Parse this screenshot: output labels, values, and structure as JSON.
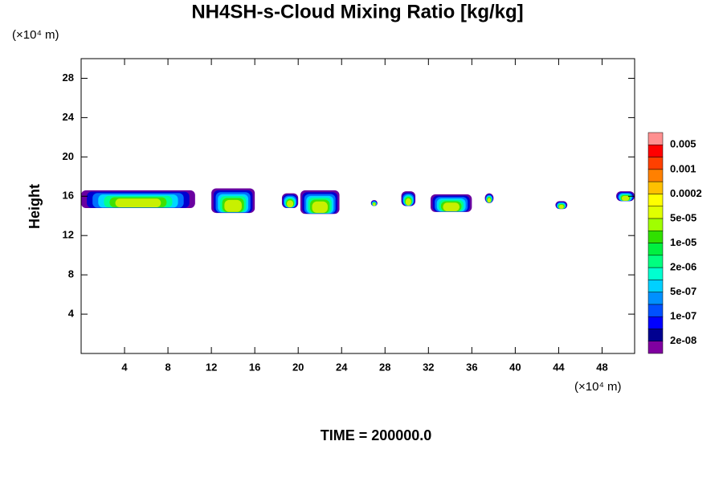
{
  "chart_data": {
    "type": "contour",
    "title": "NH4SH-s-Cloud Mixing Ratio [kg/kg]",
    "y_unit": "(×10⁴ m)",
    "x_unit": "(×10⁴ m)",
    "ylabel": "Height",
    "footer": "TIME = 200000.0",
    "xlim": [
      0,
      51
    ],
    "ylim": [
      0,
      30
    ],
    "xticks": [
      4,
      8,
      12,
      16,
      20,
      24,
      28,
      32,
      36,
      40,
      44,
      48
    ],
    "yticks": [
      4,
      8,
      12,
      16,
      20,
      24,
      28
    ],
    "clouds": [
      {
        "x": [
          0,
          10.5
        ],
        "y": [
          14.8,
          16.6
        ]
      },
      {
        "x": [
          12,
          16
        ],
        "y": [
          14.3,
          16.8
        ]
      },
      {
        "x": [
          18.5,
          20
        ],
        "y": [
          14.8,
          16.3
        ]
      },
      {
        "x": [
          20.2,
          23.8
        ],
        "y": [
          14.2,
          16.6
        ]
      },
      {
        "x": [
          26.7,
          27.3
        ],
        "y": [
          15,
          15.6
        ]
      },
      {
        "x": [
          29.5,
          30.8
        ],
        "y": [
          15,
          16.5
        ]
      },
      {
        "x": [
          32.2,
          36
        ],
        "y": [
          14.4,
          16.2
        ]
      },
      {
        "x": [
          37.2,
          38
        ],
        "y": [
          15.3,
          16.3
        ]
      },
      {
        "x": [
          43.7,
          44.8
        ],
        "y": [
          14.7,
          15.5
        ]
      },
      {
        "x": [
          49.3,
          51
        ],
        "y": [
          15.5,
          16.5
        ]
      }
    ],
    "colorbar": {
      "colors": [
        "#8000a0",
        "#000090",
        "#0000ff",
        "#0050ff",
        "#0090ff",
        "#00d0ff",
        "#00ffd0",
        "#00ff80",
        "#00f040",
        "#30e000",
        "#a0ff00",
        "#e0ff00",
        "#ffff00",
        "#ffc000",
        "#ff8000",
        "#ff4000",
        "#ff0000",
        "#ff9090"
      ],
      "labels": [
        "2e-08",
        "1e-07",
        "5e-07",
        "2e-06",
        "1e-05",
        "5e-05",
        "0.0002",
        "0.001",
        "0.005"
      ]
    }
  }
}
